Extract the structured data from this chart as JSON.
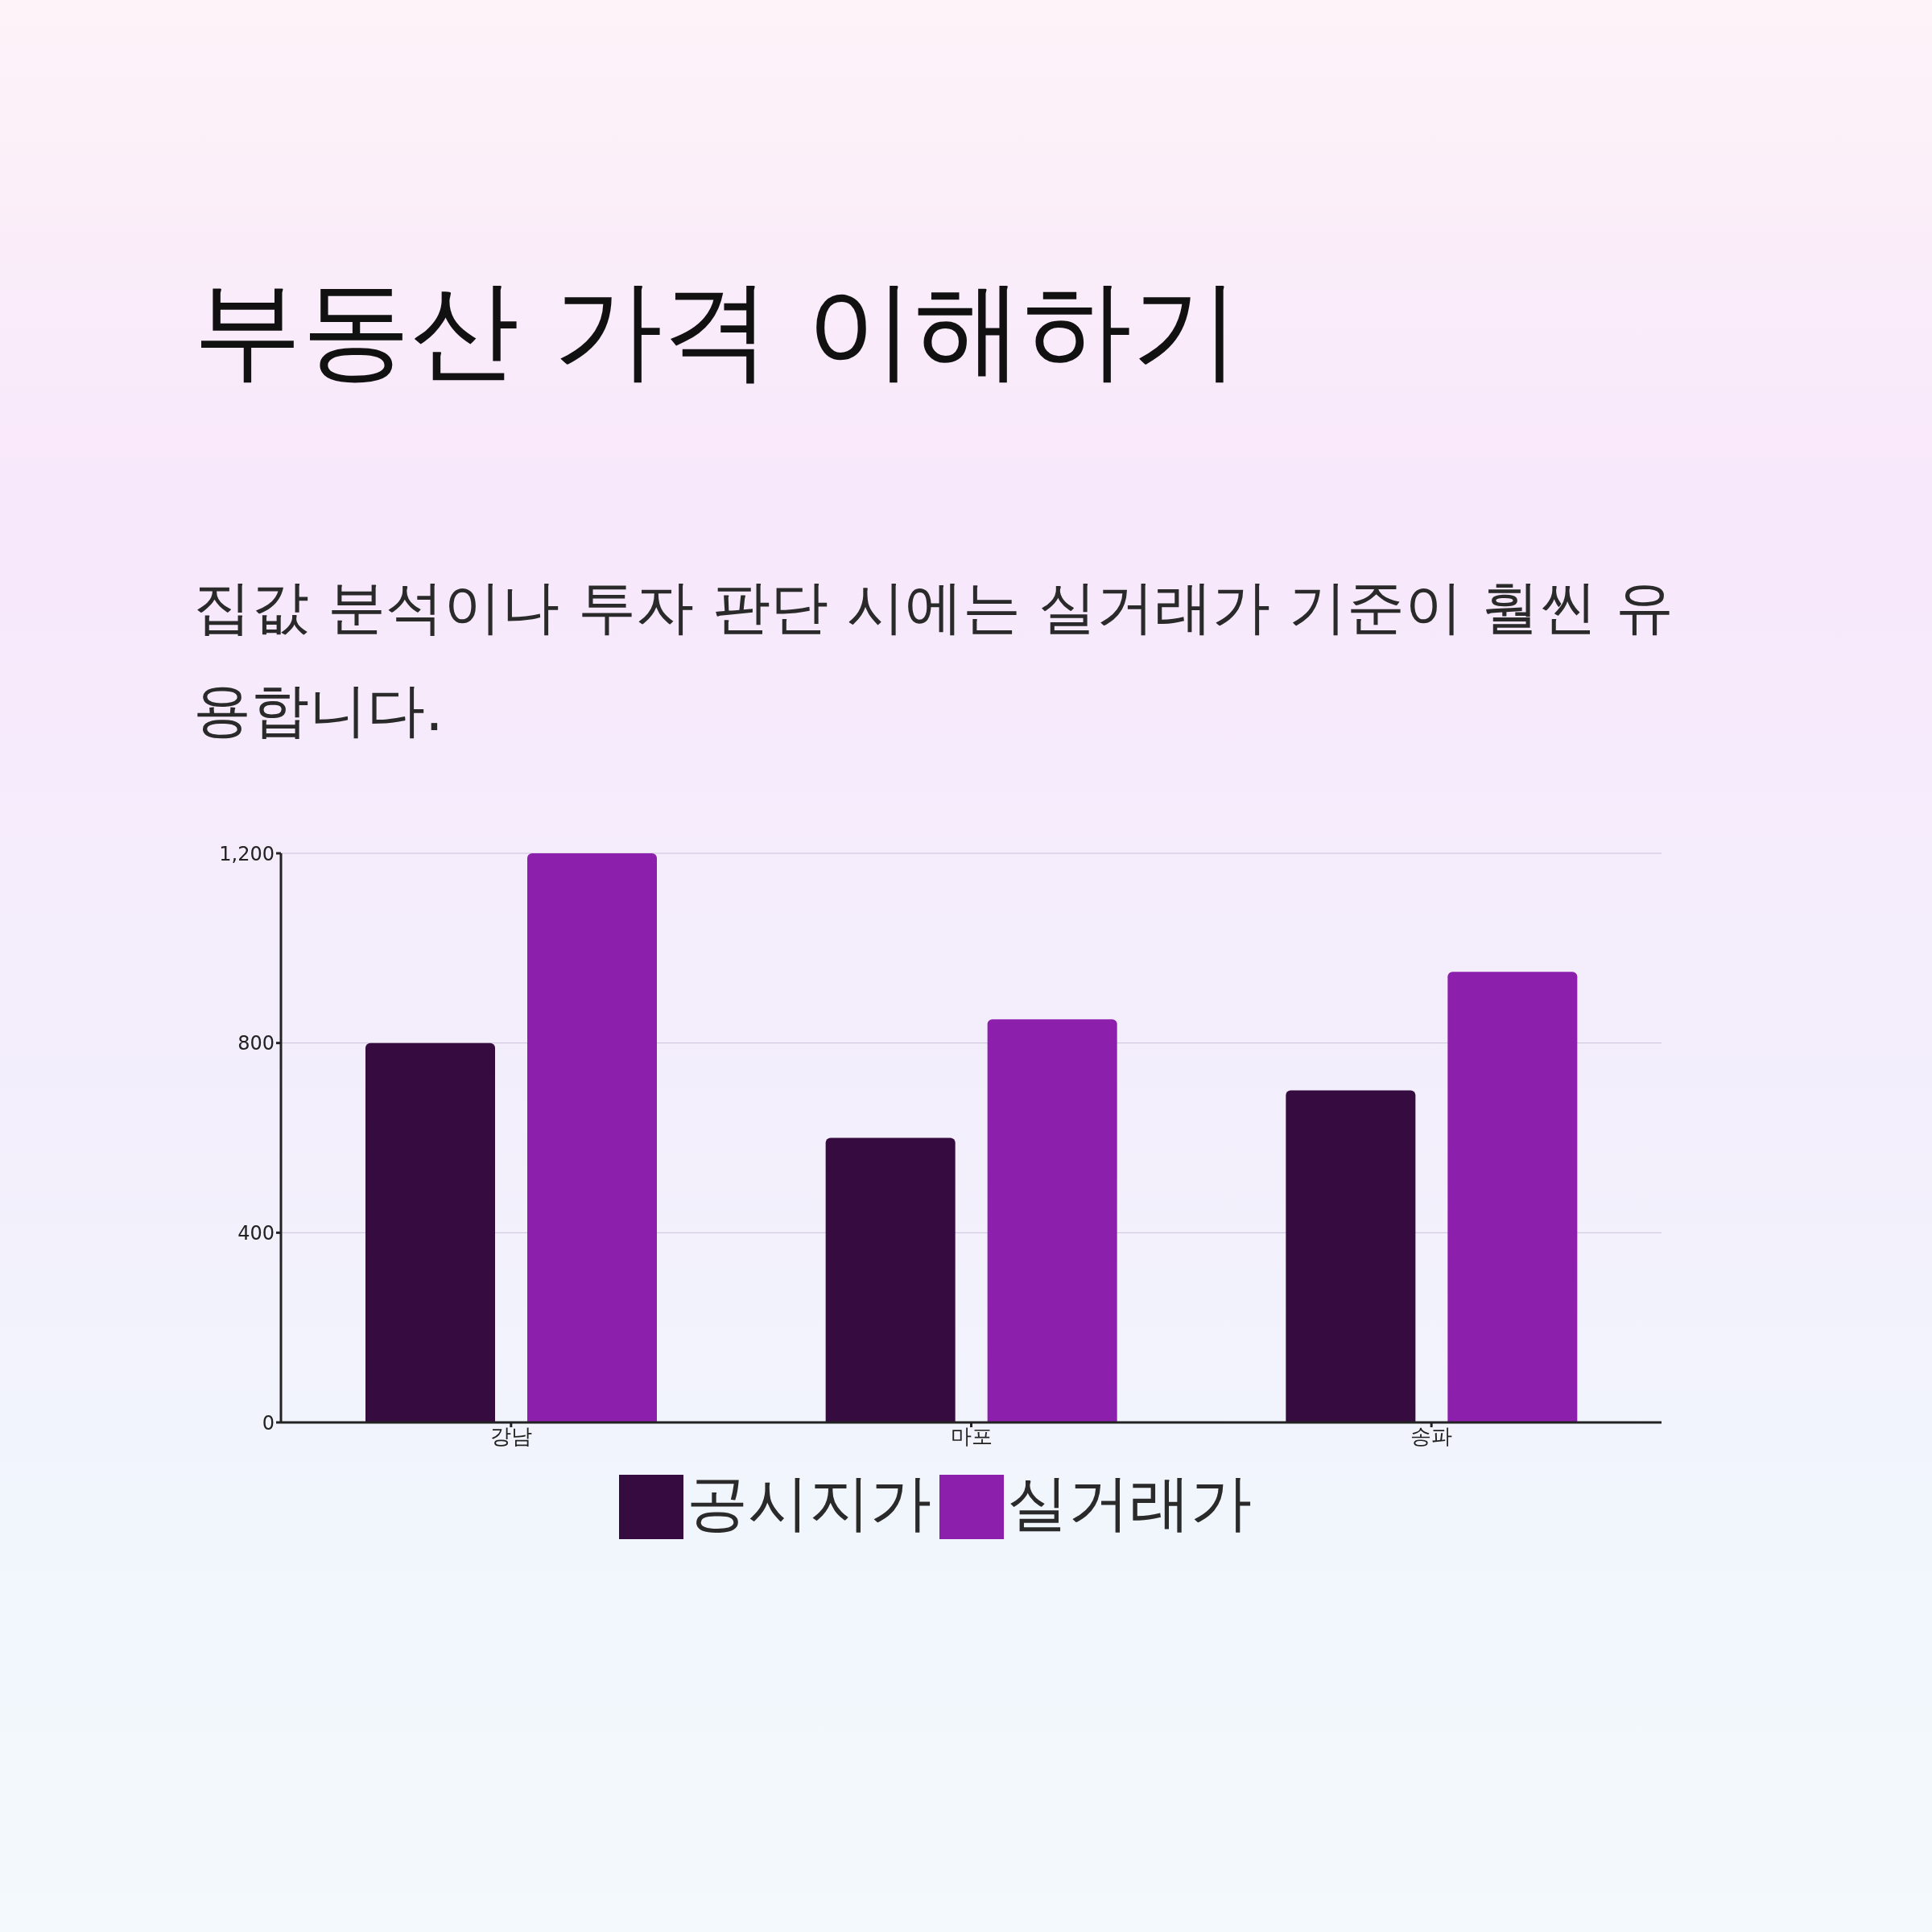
{
  "chart_data": {
    "type": "bar",
    "title": "부동산 가격 이해하기",
    "subtitle": "집값 분석이나 투자 판단 시에는 실거래가 기준이 훨씬 유용합니다.",
    "categories": [
      "강남",
      "마포",
      "송파"
    ],
    "series": [
      {
        "name": "공시지가",
        "color": "#360b3f",
        "values": [
          800,
          600,
          700
        ]
      },
      {
        "name": "실거래가",
        "color": "#8c1fac",
        "values": [
          1200,
          850,
          950
        ]
      }
    ],
    "ylim": [
      0,
      1200
    ],
    "yticks": [
      0,
      400,
      800,
      {
        "value": 1200,
        "label": "1,200"
      }
    ],
    "grid": "y",
    "legend": "bottom"
  }
}
